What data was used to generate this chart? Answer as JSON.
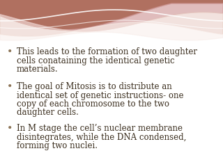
{
  "bg_color": "#ffffff",
  "text_color": "#3b2e1e",
  "bullet_color": "#8B7355",
  "bullet_points": [
    [
      "This leads to the formation of two daughter",
      "cells conataining the identical genetic",
      "materials."
    ],
    [
      "The goal of Mitosis is to distribute an",
      "identical set of genetic instructions- one",
      "copy of each chromosome to the two",
      "daughter cells."
    ],
    [
      "In M stage the cell’s nuclear membrane",
      "disintegrates, while the DNA condensed,",
      "forming two nuclei."
    ]
  ],
  "font_size": 8.5,
  "bullet_symbol": "•",
  "header_dark": "#b07060",
  "header_mid": "#d4a0a0",
  "header_light": "#ead0c8",
  "header_white": "#f8ece8"
}
